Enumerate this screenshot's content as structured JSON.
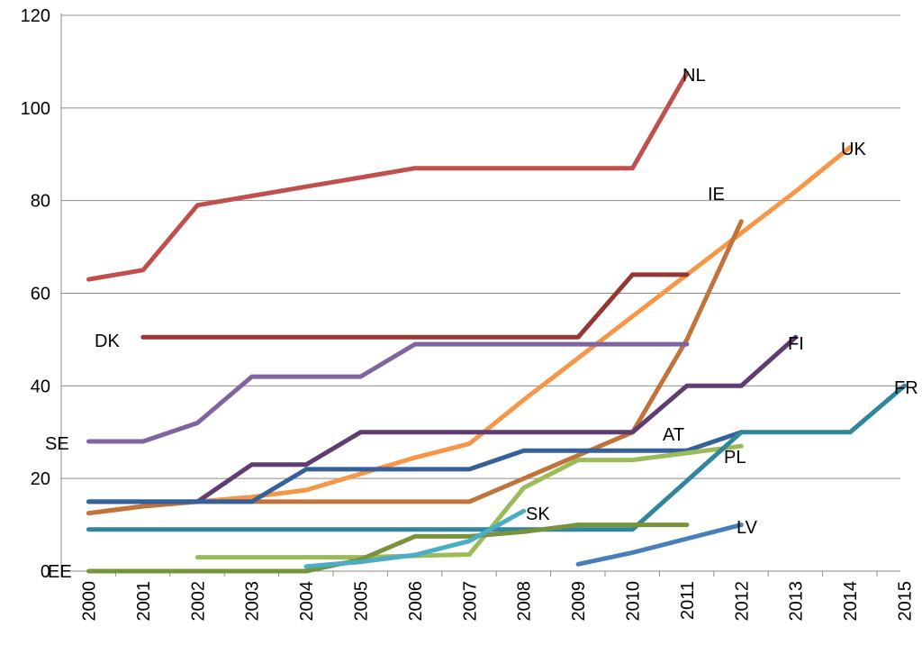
{
  "chart_data": {
    "type": "line",
    "title": "",
    "xlabel": "",
    "ylabel": "",
    "x": [
      "2000",
      "2001",
      "2002",
      "2003",
      "2004",
      "2005",
      "2006",
      "2007",
      "2008",
      "2009",
      "2010",
      "2011",
      "2012",
      "2013",
      "2014",
      "2015"
    ],
    "ylim": [
      0,
      120
    ],
    "yticks": [
      "0",
      "20",
      "40",
      "60",
      "80",
      "100",
      "120"
    ],
    "grid": true,
    "legend": "none (series labelled directly on chart)",
    "series": [
      {
        "name": "NL",
        "color": "#c0504d",
        "points": [
          [
            2000,
            63
          ],
          [
            2001,
            65
          ],
          [
            2002,
            79
          ],
          [
            2003,
            81
          ],
          [
            2004,
            83
          ],
          [
            2005,
            85
          ],
          [
            2006,
            87
          ],
          [
            2007,
            87
          ],
          [
            2008,
            87
          ],
          [
            2009,
            87
          ],
          [
            2010,
            87
          ],
          [
            2011,
            107.5
          ]
        ]
      },
      {
        "name": "UK",
        "color": "#f79646",
        "points": [
          [
            2000,
            12.5
          ],
          [
            2001,
            14
          ],
          [
            2002,
            15
          ],
          [
            2003,
            16
          ],
          [
            2004,
            17.5
          ],
          [
            2005,
            21
          ],
          [
            2006,
            24.5
          ],
          [
            2007,
            27.5
          ],
          [
            2008,
            37
          ],
          [
            2009,
            46
          ],
          [
            2010,
            55
          ],
          [
            2011,
            64
          ],
          [
            2012,
            73
          ],
          [
            2013,
            82
          ],
          [
            2014,
            91.5
          ]
        ]
      },
      {
        "name": "IE",
        "color": "#c0733a",
        "points": [
          [
            2000,
            12.5
          ],
          [
            2001,
            14
          ],
          [
            2002,
            15
          ],
          [
            2003,
            15
          ],
          [
            2004,
            15
          ],
          [
            2005,
            15
          ],
          [
            2006,
            15
          ],
          [
            2007,
            15
          ],
          [
            2008,
            20
          ],
          [
            2009,
            25
          ],
          [
            2010,
            30
          ],
          [
            2011,
            50
          ],
          [
            2012,
            75.5
          ]
        ]
      },
      {
        "name": "DK",
        "color": "#953735",
        "points": [
          [
            2001,
            50.5
          ],
          [
            2002,
            50.5
          ],
          [
            2003,
            50.5
          ],
          [
            2004,
            50.5
          ],
          [
            2005,
            50.5
          ],
          [
            2006,
            50.5
          ],
          [
            2007,
            50.5
          ],
          [
            2008,
            50.5
          ],
          [
            2009,
            50.5
          ],
          [
            2010,
            64
          ],
          [
            2011,
            64
          ]
        ]
      },
      {
        "name": "SE",
        "color": "#8064a2",
        "points": [
          [
            2000,
            28
          ],
          [
            2001,
            28
          ],
          [
            2002,
            32
          ],
          [
            2003,
            42
          ],
          [
            2004,
            42
          ],
          [
            2005,
            42
          ],
          [
            2006,
            49
          ],
          [
            2007,
            49
          ],
          [
            2008,
            49
          ],
          [
            2009,
            49
          ],
          [
            2010,
            49
          ],
          [
            2011,
            49
          ]
        ]
      },
      {
        "name": "FI",
        "color": "#5f3c71",
        "points": [
          [
            2000,
            15
          ],
          [
            2001,
            15
          ],
          [
            2002,
            15
          ],
          [
            2003,
            23
          ],
          [
            2004,
            23
          ],
          [
            2005,
            30
          ],
          [
            2006,
            30
          ],
          [
            2007,
            30
          ],
          [
            2008,
            30
          ],
          [
            2009,
            30
          ],
          [
            2010,
            30
          ],
          [
            2011,
            40
          ],
          [
            2012,
            40
          ],
          [
            2013,
            50.5
          ]
        ]
      },
      {
        "name": "AT",
        "color": "#36609a",
        "points": [
          [
            2000,
            15
          ],
          [
            2001,
            15
          ],
          [
            2002,
            15
          ],
          [
            2003,
            15
          ],
          [
            2004,
            22
          ],
          [
            2005,
            22
          ],
          [
            2006,
            22
          ],
          [
            2007,
            22
          ],
          [
            2008,
            26
          ],
          [
            2009,
            26
          ],
          [
            2010,
            26
          ],
          [
            2011,
            26
          ],
          [
            2012,
            30
          ]
        ]
      },
      {
        "name": "PL",
        "color": "#9bbb59",
        "points": [
          [
            2002,
            3
          ],
          [
            2003,
            3
          ],
          [
            2004,
            3
          ],
          [
            2005,
            3
          ],
          [
            2006,
            3.3
          ],
          [
            2007,
            3.6
          ],
          [
            2008,
            18
          ],
          [
            2009,
            24
          ],
          [
            2010,
            24
          ],
          [
            2011,
            25.5
          ],
          [
            2012,
            27
          ]
        ]
      },
      {
        "name": "FR",
        "color": "#31859c",
        "points": [
          [
            2000,
            9
          ],
          [
            2001,
            9
          ],
          [
            2002,
            9
          ],
          [
            2003,
            9
          ],
          [
            2004,
            9
          ],
          [
            2005,
            9
          ],
          [
            2006,
            9
          ],
          [
            2007,
            9
          ],
          [
            2008,
            9
          ],
          [
            2009,
            9
          ],
          [
            2010,
            9
          ],
          [
            2011,
            19.5
          ],
          [
            2012,
            30
          ],
          [
            2013,
            30
          ],
          [
            2014,
            30
          ],
          [
            2015,
            40
          ]
        ]
      },
      {
        "name": "EE",
        "color": "#77933c",
        "points": [
          [
            2000,
            0
          ],
          [
            2001,
            0
          ],
          [
            2002,
            0
          ],
          [
            2003,
            0
          ],
          [
            2004,
            0
          ],
          [
            2005,
            2.5
          ],
          [
            2006,
            7.5
          ],
          [
            2007,
            7.5
          ],
          [
            2008,
            8.5
          ],
          [
            2009,
            10
          ],
          [
            2010,
            10
          ],
          [
            2011,
            10
          ]
        ]
      },
      {
        "name": "SK",
        "color": "#4bacc6",
        "points": [
          [
            2004,
            1
          ],
          [
            2005,
            2
          ],
          [
            2006,
            3.5
          ],
          [
            2007,
            6.5
          ],
          [
            2008,
            13
          ]
        ]
      },
      {
        "name": "LV",
        "color": "#4a7ebb",
        "points": [
          [
            2009,
            1.5
          ],
          [
            2010,
            4
          ],
          [
            2011,
            7
          ],
          [
            2012,
            10
          ]
        ]
      }
    ]
  }
}
